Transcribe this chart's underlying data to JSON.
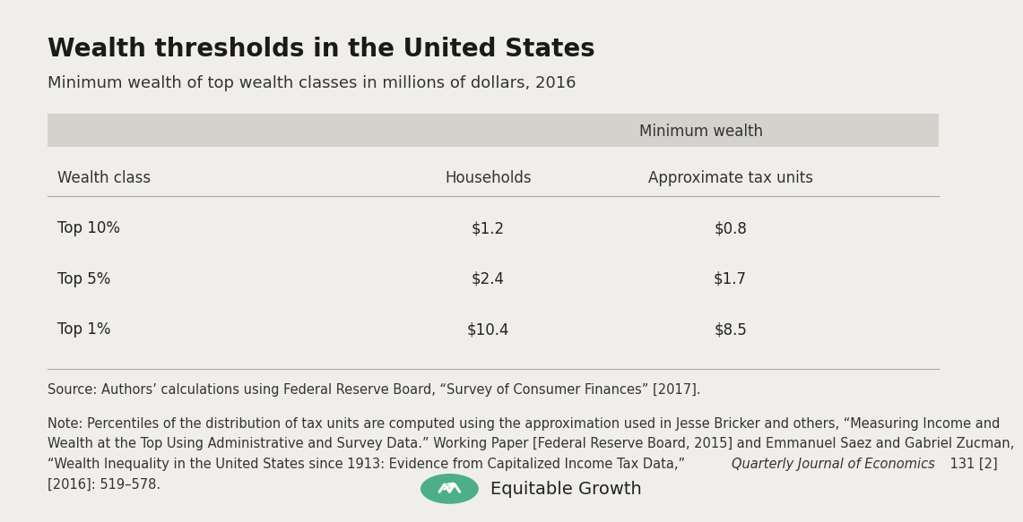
{
  "title": "Wealth thresholds in the United States",
  "subtitle": "Minimum wealth of top wealth classes in millions of dollars, 2016",
  "group_header": "Minimum wealth",
  "col_headers": [
    "Wealth class",
    "Households",
    "Approximate tax units"
  ],
  "rows": [
    [
      "Top 10%",
      "$1.2",
      "$0.8"
    ],
    [
      "Top 5%",
      "$2.4",
      "$1.7"
    ],
    [
      "Top 1%",
      "$10.4",
      "$8.5"
    ]
  ],
  "source_text": "Source: Authors’ calculations using Federal Reserve Board, “Survey of Consumer Finances” [2017].",
  "note_line1": "Note: Percentiles of the distribution of tax units are computed using the approximation used in Jesse Bricker and others, “Measuring Income and",
  "note_line2": "Wealth at the Top Using Administrative and Survey Data.” Working Paper [Federal Reserve Board, 2015] and Emmanuel Saez and Gabriel Zucman,",
  "note_line3_plain": "“Wealth Inequality in the United States since 1913: Evidence from Capitalized Income Tax Data,” ",
  "note_italic": "Quarterly Journal of Economics",
  "note_end": " 131 [2]",
  "note_line4": "[2016]: 519–578.",
  "bg_color": "#f0eeeb",
  "header_band_color": "#d4d2cd",
  "line_color": "#aaaaaa",
  "title_fontsize": 20,
  "subtitle_fontsize": 13,
  "col_header_fontsize": 12,
  "data_fontsize": 12,
  "note_fontsize": 10.5,
  "brand_text": "Equitable Growth",
  "brand_color": "#4caf8a"
}
